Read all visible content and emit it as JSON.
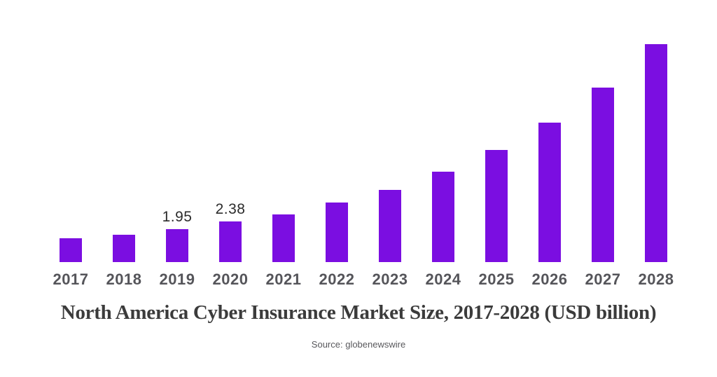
{
  "page": {
    "background": "#ffffff"
  },
  "chart_data": {
    "type": "bar",
    "title": "North America Cyber Insurance Market Size, 2017-2028 (USD billion)",
    "source": "Source: globenewswire",
    "xlabel": "",
    "ylabel": "",
    "categories": [
      "2017",
      "2018",
      "2019",
      "2020",
      "2021",
      "2022",
      "2023",
      "2024",
      "2025",
      "2026",
      "2027",
      "2028"
    ],
    "values": [
      1.4,
      1.6,
      1.95,
      2.38,
      2.8,
      3.5,
      4.25,
      5.3,
      6.6,
      8.2,
      10.25,
      12.8
    ],
    "bar_labels": [
      "",
      "",
      "1.95",
      "2.38",
      "",
      "",
      "",
      "",
      "",
      "",
      "",
      ""
    ],
    "ylim": [
      0,
      13
    ],
    "grid": false,
    "axes_visible": false,
    "legend": null,
    "colors": {
      "bar": "#7B0EE1",
      "value_label": "#2b2b2b",
      "tick_label": "#55555a",
      "title": "#3b3b3b",
      "source": "#58585c"
    }
  }
}
